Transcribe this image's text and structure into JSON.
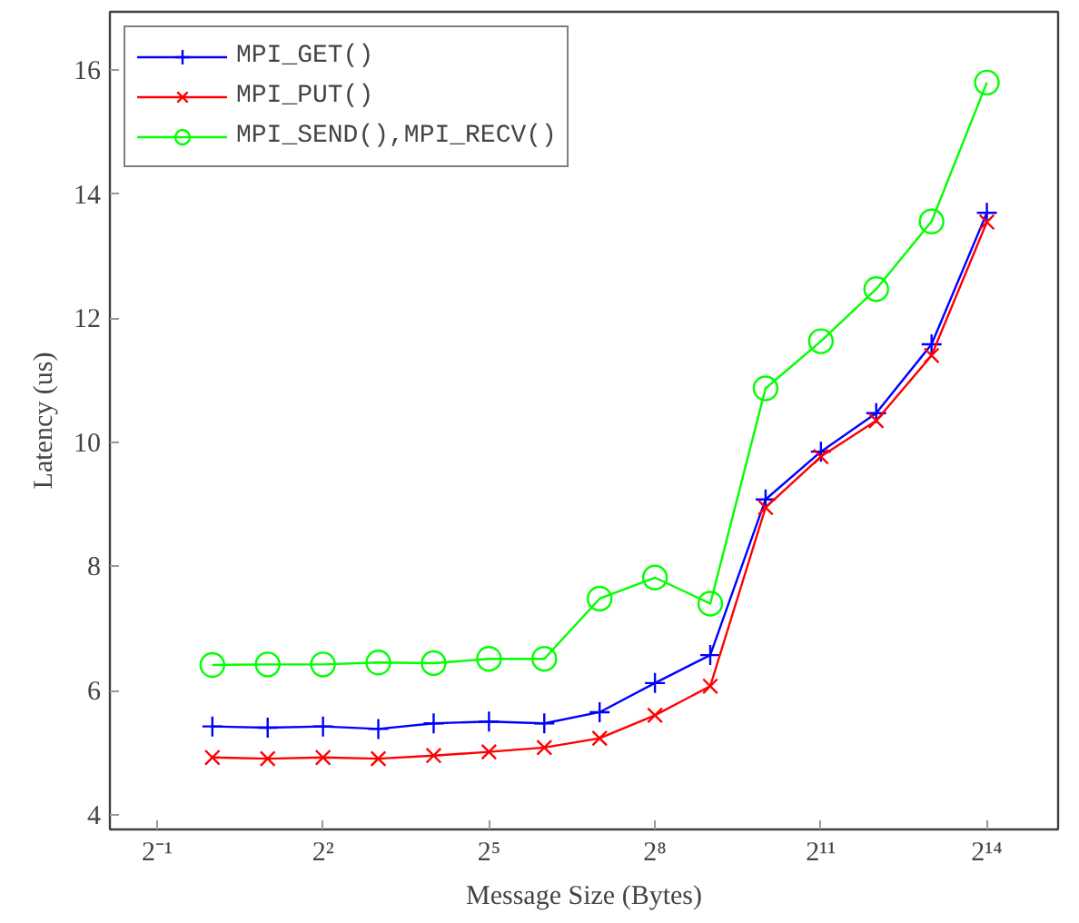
{
  "chart_data": {
    "type": "line",
    "xlabel": "Message Size (Bytes)",
    "ylabel": "Latency (us)",
    "x": [
      1,
      2,
      4,
      8,
      16,
      32,
      64,
      128,
      256,
      512,
      1024,
      2048,
      4096,
      8192,
      16384
    ],
    "log": "x",
    "xlim": [
      0.277,
      40000
    ],
    "ylim": [
      3.76,
      16.94
    ],
    "xticks": [
      {
        "value": 0.5,
        "label": "2⁻¹"
      },
      {
        "value": 4,
        "label": "2²"
      },
      {
        "value": 32,
        "label": "2⁵"
      },
      {
        "value": 256,
        "label": "2⁸"
      },
      {
        "value": 2048,
        "label": "2¹¹"
      },
      {
        "value": 16384,
        "label": "2¹⁴"
      }
    ],
    "yticks": [
      4,
      6,
      8,
      10,
      12,
      14,
      16
    ],
    "grid": false,
    "legend": "top left",
    "series": [
      {
        "name": "MPI_GET()",
        "color": "#0000ff",
        "marker": "plus",
        "values": [
          5.42,
          5.4,
          5.42,
          5.38,
          5.47,
          5.5,
          5.47,
          5.65,
          6.12,
          6.57,
          9.08,
          9.85,
          10.47,
          11.58,
          13.7
        ]
      },
      {
        "name": "MPI_PUT()",
        "color": "#ff0000",
        "marker": "cross",
        "values": [
          4.92,
          4.9,
          4.92,
          4.9,
          4.95,
          5.01,
          5.08,
          5.23,
          5.6,
          6.07,
          8.95,
          9.77,
          10.35,
          11.4,
          13.55
        ]
      },
      {
        "name": "MPI_SEND(),MPI_RECV()",
        "color": "#00ff00",
        "marker": "circle",
        "values": [
          6.41,
          6.42,
          6.42,
          6.45,
          6.44,
          6.51,
          6.51,
          7.48,
          7.82,
          7.4,
          10.87,
          11.63,
          12.47,
          13.56,
          15.8
        ]
      }
    ]
  }
}
